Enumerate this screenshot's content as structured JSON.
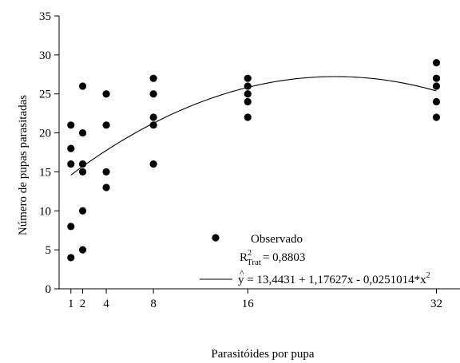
{
  "chart_data": {
    "type": "scatter",
    "title": "",
    "xlabel": "Parasitóides por pupa",
    "ylabel": "Número de pupas parasitadas",
    "xlim": [
      0,
      34
    ],
    "ylim": [
      0,
      35
    ],
    "x_ticks": [
      1,
      2,
      4,
      8,
      16,
      32
    ],
    "y_ticks": [
      0,
      5,
      10,
      15,
      20,
      25,
      30,
      35
    ],
    "grid": false,
    "series": [
      {
        "name": "Observado",
        "kind": "scatter",
        "color": "#000000",
        "points": [
          {
            "x": 1,
            "y": 21
          },
          {
            "x": 1,
            "y": 18
          },
          {
            "x": 1,
            "y": 16
          },
          {
            "x": 1,
            "y": 8
          },
          {
            "x": 1,
            "y": 4
          },
          {
            "x": 2,
            "y": 26
          },
          {
            "x": 2,
            "y": 20
          },
          {
            "x": 2,
            "y": 16
          },
          {
            "x": 2,
            "y": 15
          },
          {
            "x": 2,
            "y": 10
          },
          {
            "x": 2,
            "y": 5
          },
          {
            "x": 4,
            "y": 25
          },
          {
            "x": 4,
            "y": 21
          },
          {
            "x": 4,
            "y": 15
          },
          {
            "x": 4,
            "y": 13
          },
          {
            "x": 8,
            "y": 27
          },
          {
            "x": 8,
            "y": 25
          },
          {
            "x": 8,
            "y": 22
          },
          {
            "x": 8,
            "y": 21
          },
          {
            "x": 8,
            "y": 16
          },
          {
            "x": 16,
            "y": 27
          },
          {
            "x": 16,
            "y": 26
          },
          {
            "x": 16,
            "y": 25
          },
          {
            "x": 16,
            "y": 24
          },
          {
            "x": 16,
            "y": 22
          },
          {
            "x": 32,
            "y": 29
          },
          {
            "x": 32,
            "y": 27
          },
          {
            "x": 32,
            "y": 26
          },
          {
            "x": 32,
            "y": 24
          },
          {
            "x": 32,
            "y": 22
          }
        ]
      },
      {
        "name": "ŷ = 13,4431 + 1,17627x - 0,0251014*x²",
        "kind": "line",
        "color": "#000000",
        "fit": {
          "intercept": 13.4431,
          "linear": 1.17627,
          "quadratic": -0.0251014,
          "x_range": [
            1,
            32
          ]
        }
      }
    ],
    "legend": {
      "position": "bottom-right",
      "observed_label": "Observado",
      "r2_main": "R",
      "r2_sup": "2",
      "r2_sub": "Trat",
      "r2_value": "= 0,8803",
      "eq_hat": "^",
      "eq_text": "y = 13,4431 + 1,17627x - 0,0251014*x",
      "eq_sup": "2"
    }
  }
}
